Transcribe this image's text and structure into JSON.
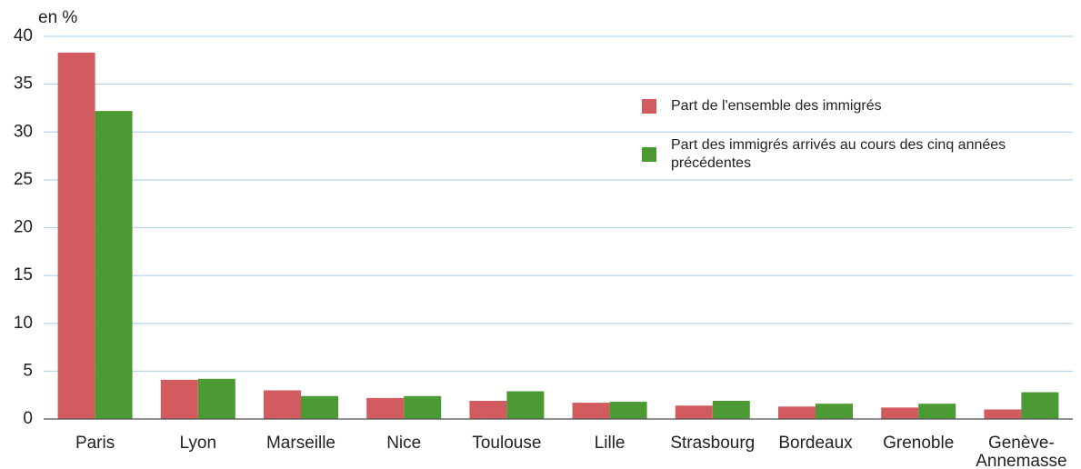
{
  "chart_data": {
    "type": "bar",
    "y_label": "en %",
    "categories": [
      "Paris",
      "Lyon",
      "Marseille",
      "Nice",
      "Toulouse",
      "Lille",
      "Strasbourg",
      "Bordeaux",
      "Grenoble",
      "Genève-Annemasse"
    ],
    "series": [
      {
        "name": "Part de l'ensemble des immigrés",
        "color": "#d15b5f",
        "values": [
          38.3,
          4.1,
          3.0,
          2.2,
          1.9,
          1.7,
          1.4,
          1.3,
          1.2,
          1.0
        ]
      },
      {
        "name": "Part des immigrés arrivés au cours des cinq années précédentes",
        "color": "#4b9a33",
        "values": [
          32.2,
          4.2,
          2.4,
          2.4,
          2.9,
          1.8,
          1.9,
          1.6,
          1.6,
          2.8
        ]
      }
    ],
    "ylim": [
      0,
      40
    ],
    "yticks": [
      0,
      5,
      10,
      15,
      20,
      25,
      30,
      35,
      40
    ],
    "grid": true,
    "legend": "upper right"
  }
}
